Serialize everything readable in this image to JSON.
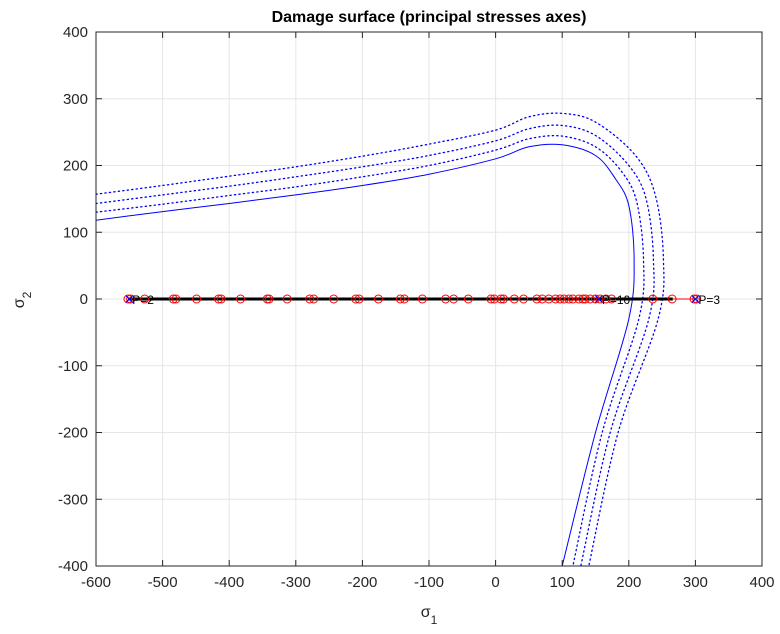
{
  "chart_data": {
    "type": "line",
    "title": "Damage surface (principal stresses axes)",
    "xlabel": {
      "base": "σ",
      "sub": "1"
    },
    "ylabel": {
      "base": "σ",
      "sub": "2"
    },
    "xlim": [
      -600,
      400
    ],
    "ylim": [
      -400,
      400
    ],
    "xticks": [
      -600,
      -500,
      -400,
      -300,
      -200,
      -100,
      0,
      100,
      200,
      300,
      400
    ],
    "yticks": [
      -400,
      -300,
      -200,
      -100,
      0,
      100,
      200,
      300,
      400
    ],
    "grid": true,
    "colors": {
      "surface": "#0000ff",
      "points": "#ff0000",
      "path": "#000000",
      "axes": "#262626",
      "grid": "#e6e6e6"
    },
    "surface": {
      "x": [
        -600,
        -500,
        -400,
        -300,
        -200,
        -100,
        0,
        50,
        100,
        150,
        180,
        200,
        208,
        200,
        150,
        100
      ],
      "y": [
        118,
        131,
        143,
        156,
        170,
        187,
        210,
        228,
        231,
        215,
        180,
        140,
        60,
        -30,
        -200,
        -400
      ]
    },
    "offset_surfaces": [
      {
        "x": [
          -600,
          -500,
          -400,
          -300,
          -200,
          -100,
          0,
          50,
          100,
          150,
          190,
          212,
          222,
          215,
          160,
          116
        ],
        "y": [
          130,
          142,
          155,
          168,
          183,
          200,
          223,
          240,
          244,
          228,
          190,
          145,
          60,
          -30,
          -200,
          -400
        ]
      },
      {
        "x": [
          -600,
          -500,
          -400,
          -300,
          -200,
          -100,
          0,
          50,
          100,
          150,
          200,
          226,
          237,
          230,
          172,
          128
        ],
        "y": [
          143,
          156,
          169,
          183,
          198,
          215,
          237,
          255,
          260,
          245,
          200,
          150,
          60,
          -30,
          -200,
          -400
        ]
      },
      {
        "x": [
          -600,
          -500,
          -400,
          -300,
          -200,
          -100,
          0,
          50,
          100,
          150,
          210,
          240,
          252,
          244,
          184,
          140
        ],
        "y": [
          157,
          170,
          184,
          198,
          214,
          232,
          253,
          273,
          278,
          265,
          215,
          155,
          60,
          -30,
          -200,
          -400
        ]
      }
    ],
    "points_x": [
      -552,
      -548,
      -527,
      -484,
      -480,
      -449,
      -416,
      -412,
      -383,
      -343,
      -340,
      -313,
      -279,
      -273,
      -243,
      -210,
      -205,
      -176,
      -143,
      -137,
      -110,
      -75,
      -63,
      -41,
      -7,
      -2,
      8,
      12,
      28,
      42,
      62,
      70,
      80,
      90,
      97,
      103,
      110,
      116,
      125,
      131,
      135,
      142,
      150,
      157,
      166,
      174,
      236,
      265,
      298,
      302
    ],
    "point_labels": [
      {
        "text": "P=2",
        "x": -550,
        "y": 0
      },
      {
        "text": "P=10",
        "x": 155,
        "y": 0
      },
      {
        "text": "P=3",
        "x": 300,
        "y": 0
      }
    ]
  }
}
